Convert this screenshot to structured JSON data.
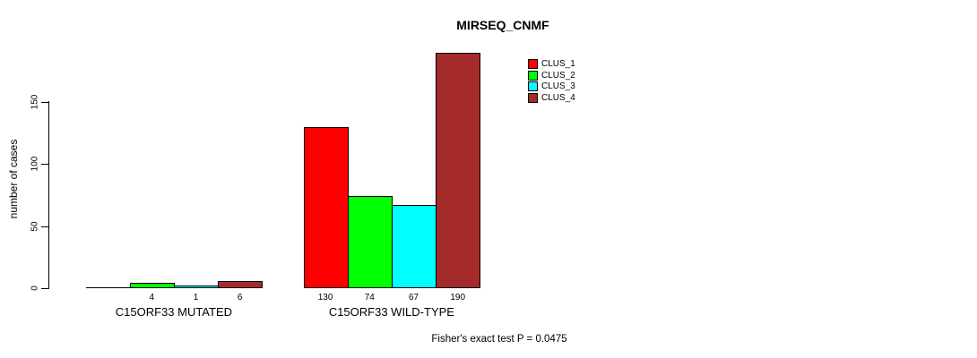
{
  "title": "MIRSEQ_CNMF",
  "chart_data": {
    "type": "bar",
    "title": "MIRSEQ_CNMF",
    "xlabel": "",
    "ylabel": "number of cases",
    "ylim": [
      0,
      195
    ],
    "grid": false,
    "legend_position": "top-right",
    "yticks": [
      "0",
      "50",
      "100",
      "150"
    ],
    "ytick_values": [
      0,
      50,
      100,
      150
    ],
    "categories": [
      "C15ORF33 MUTATED",
      "C15ORF33 WILD-TYPE"
    ],
    "series": [
      {
        "name": "CLUS_1",
        "color": "#ff0000",
        "values": [
          0,
          130
        ]
      },
      {
        "name": "CLUS_2",
        "color": "#00ff00",
        "values": [
          4,
          74
        ]
      },
      {
        "name": "CLUS_3",
        "color": "#00ffff",
        "values": [
          1,
          67
        ]
      },
      {
        "name": "CLUS_4",
        "color": "#a52a2a",
        "values": [
          6,
          190
        ]
      }
    ],
    "bar_value_labels": [
      [
        "",
        "4",
        "1",
        "6"
      ],
      [
        "130",
        "74",
        "67",
        "190"
      ]
    ],
    "annotation": "Fisher's exact test P = 0.0475",
    "colors": {
      "bar_border": "#000000",
      "text": "#000000",
      "background": "#ffffff"
    }
  }
}
